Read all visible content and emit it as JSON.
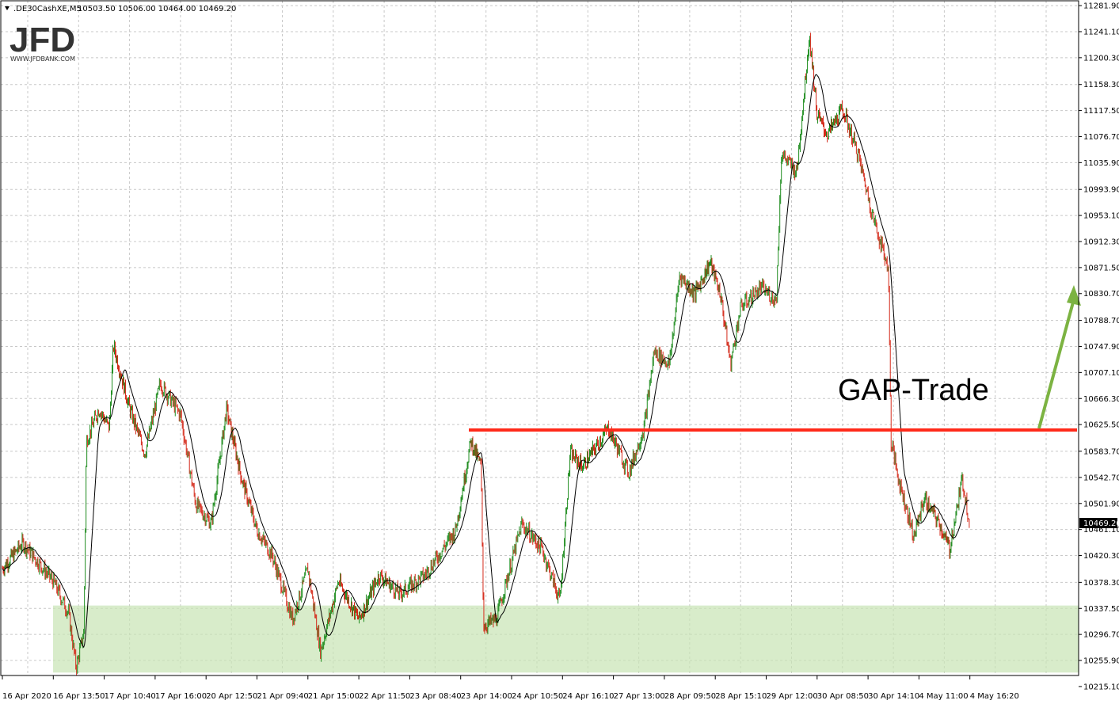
{
  "header": {
    "symbol": ".DE30CashXE,M5",
    "ohlc": "10503.50 10506.00 10464.00 10469.20"
  },
  "logo": {
    "text": "JFD",
    "sub": "WWW.JFDBANK.COM"
  },
  "annotation": {
    "text": "GAP-Trade"
  },
  "chart_data": {
    "type": "candlestick",
    "instrument": ".DE30CashXE",
    "timeframe": "M5",
    "ylim": [
      10215.0,
      11282.0
    ],
    "y_ticks": [
      "11281.90",
      "11241.10",
      "11200.30",
      "11158.30",
      "11117.50",
      "11076.70",
      "11035.90",
      "10993.90",
      "10953.10",
      "10912.30",
      "10871.50",
      "10830.70",
      "10788.70",
      "10747.90",
      "10707.10",
      "10666.30",
      "10625.50",
      "10583.70",
      "10542.70",
      "10501.90",
      "10461.10",
      "10420.30",
      "10378.30",
      "10337.50",
      "10296.70",
      "10255.90",
      "10215.10"
    ],
    "x_ticks": [
      "16 Apr 2020",
      "16 Apr 13:50",
      "17 Apr 10:40",
      "17 Apr 16:00",
      "20 Apr 12:50",
      "21 Apr 09:40",
      "21 Apr 15:00",
      "22 Apr 11:50",
      "23 Apr 08:40",
      "23 Apr 14:00",
      "24 Apr 10:50",
      "24 Apr 16:10",
      "27 Apr 13:00",
      "28 Apr 09:50",
      "28 Apr 15:10",
      "29 Apr 12:00",
      "30 Apr 08:50",
      "30 Apr 14:10",
      "4 May 11:00",
      "4 May 16:20"
    ],
    "current_price": "10469.20",
    "resistance_level": 10617,
    "support_zone": [
      10237,
      10342
    ],
    "price_path": [
      {
        "x": 0,
        "p": 10400
      },
      {
        "x": 0.4,
        "p": 10440
      },
      {
        "x": 1.0,
        "p": 10380
      },
      {
        "x": 1.3,
        "p": 10330
      },
      {
        "x": 1.45,
        "p": 10245
      },
      {
        "x": 1.6,
        "p": 10300
      },
      {
        "x": 1.65,
        "p": 10600
      },
      {
        "x": 1.9,
        "p": 10650
      },
      {
        "x": 2.1,
        "p": 10620
      },
      {
        "x": 2.18,
        "p": 10750
      },
      {
        "x": 2.5,
        "p": 10650
      },
      {
        "x": 2.8,
        "p": 10580
      },
      {
        "x": 3.1,
        "p": 10690
      },
      {
        "x": 3.5,
        "p": 10640
      },
      {
        "x": 3.8,
        "p": 10500
      },
      {
        "x": 4.1,
        "p": 10470
      },
      {
        "x": 4.4,
        "p": 10650
      },
      {
        "x": 4.7,
        "p": 10540
      },
      {
        "x": 5.0,
        "p": 10460
      },
      {
        "x": 5.3,
        "p": 10420
      },
      {
        "x": 5.7,
        "p": 10320
      },
      {
        "x": 6.0,
        "p": 10400
      },
      {
        "x": 6.25,
        "p": 10270
      },
      {
        "x": 6.6,
        "p": 10380
      },
      {
        "x": 7.0,
        "p": 10320
      },
      {
        "x": 7.4,
        "p": 10390
      },
      {
        "x": 7.8,
        "p": 10360
      },
      {
        "x": 8.3,
        "p": 10390
      },
      {
        "x": 8.9,
        "p": 10460
      },
      {
        "x": 9.2,
        "p": 10600
      },
      {
        "x": 9.4,
        "p": 10560
      },
      {
        "x": 9.45,
        "p": 10310
      },
      {
        "x": 9.7,
        "p": 10320
      },
      {
        "x": 10.2,
        "p": 10470
      },
      {
        "x": 10.6,
        "p": 10430
      },
      {
        "x": 10.95,
        "p": 10350
      },
      {
        "x": 11.15,
        "p": 10580
      },
      {
        "x": 11.4,
        "p": 10560
      },
      {
        "x": 11.9,
        "p": 10620
      },
      {
        "x": 12.3,
        "p": 10550
      },
      {
        "x": 12.6,
        "p": 10620
      },
      {
        "x": 12.8,
        "p": 10740
      },
      {
        "x": 13.1,
        "p": 10720
      },
      {
        "x": 13.3,
        "p": 10860
      },
      {
        "x": 13.6,
        "p": 10830
      },
      {
        "x": 13.9,
        "p": 10880
      },
      {
        "x": 14.1,
        "p": 10830
      },
      {
        "x": 14.3,
        "p": 10720
      },
      {
        "x": 14.5,
        "p": 10810
      },
      {
        "x": 14.9,
        "p": 10840
      },
      {
        "x": 15.2,
        "p": 10820
      },
      {
        "x": 15.3,
        "p": 11050
      },
      {
        "x": 15.6,
        "p": 11020
      },
      {
        "x": 15.85,
        "p": 11236
      },
      {
        "x": 16.0,
        "p": 11110
      },
      {
        "x": 16.2,
        "p": 11080
      },
      {
        "x": 16.5,
        "p": 11120
      },
      {
        "x": 16.8,
        "p": 11050
      },
      {
        "x": 17.1,
        "p": 10950
      },
      {
        "x": 17.4,
        "p": 10870
      },
      {
        "x": 17.45,
        "p": 10600
      },
      {
        "x": 17.6,
        "p": 10540
      },
      {
        "x": 17.9,
        "p": 10450
      },
      {
        "x": 18.1,
        "p": 10510
      },
      {
        "x": 18.4,
        "p": 10470
      },
      {
        "x": 18.6,
        "p": 10430
      },
      {
        "x": 18.85,
        "p": 10540
      },
      {
        "x": 19.0,
        "p": 10469
      }
    ]
  }
}
